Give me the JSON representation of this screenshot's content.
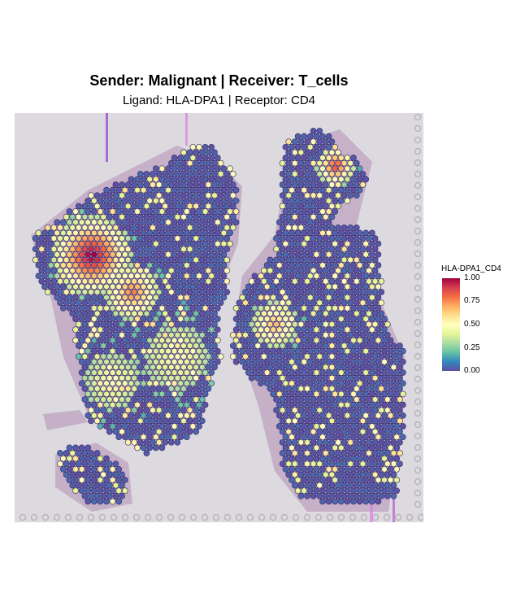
{
  "plot": {
    "title": "Sender: Malignant | Receiver: T_cells",
    "subtitle": "Ligand: HLA-DPA1 | Receptor: CD4"
  },
  "legend": {
    "title": "HLA-DPA1_CD4",
    "ticks": [
      "1.00",
      "0.75",
      "0.50",
      "0.25",
      "0.00"
    ],
    "range": [
      0,
      1
    ]
  },
  "colors": {
    "background": "#dcd9df",
    "tissue": "#b48fb4",
    "spot_low": "#5e4fa2",
    "spot_high": "#9e0142",
    "spot_outline": "#3b2f6e"
  }
}
